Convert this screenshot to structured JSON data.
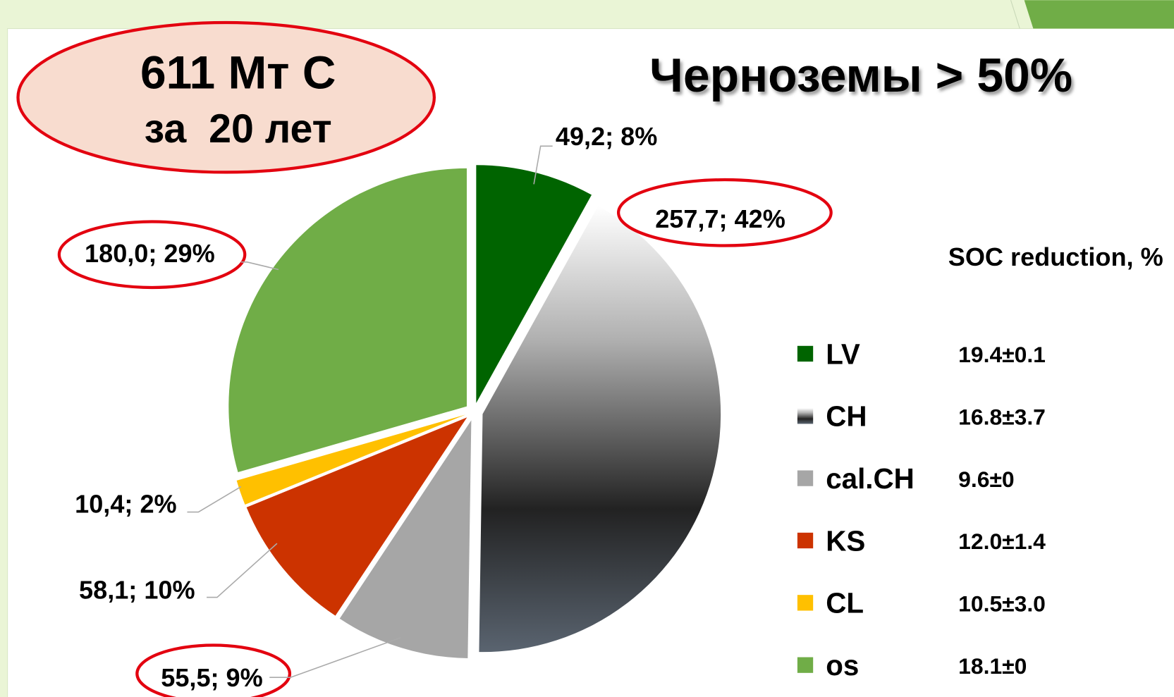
{
  "chart_data": {
    "type": "pie",
    "title": "Черноземы > 50%",
    "annotations": [
      "611 Мт С",
      "за  20 лет"
    ],
    "categories": [
      "LV",
      "CH",
      "cal.CH",
      "KS",
      "CL",
      "os"
    ],
    "values": [
      49.2,
      257.7,
      55.5,
      58.1,
      10.4,
      180.0
    ],
    "value_labels": [
      "49,2; 8%",
      "257,7; 42%",
      "55,5; 9%",
      "58,1; 10%",
      "10,4; 2%",
      "180,0; 29%"
    ],
    "colors": [
      "#006400",
      "gradient",
      "#a6a6a6",
      "#cc3300",
      "#ffc000",
      "#70ad47"
    ],
    "legend_header": "SOC reduction, %",
    "legend_values": [
      "19.4±0.1",
      "16.8±3.7",
      "9.6±0",
      "12.0±1.4",
      "10.5±3.0",
      "18.1±0"
    ]
  }
}
